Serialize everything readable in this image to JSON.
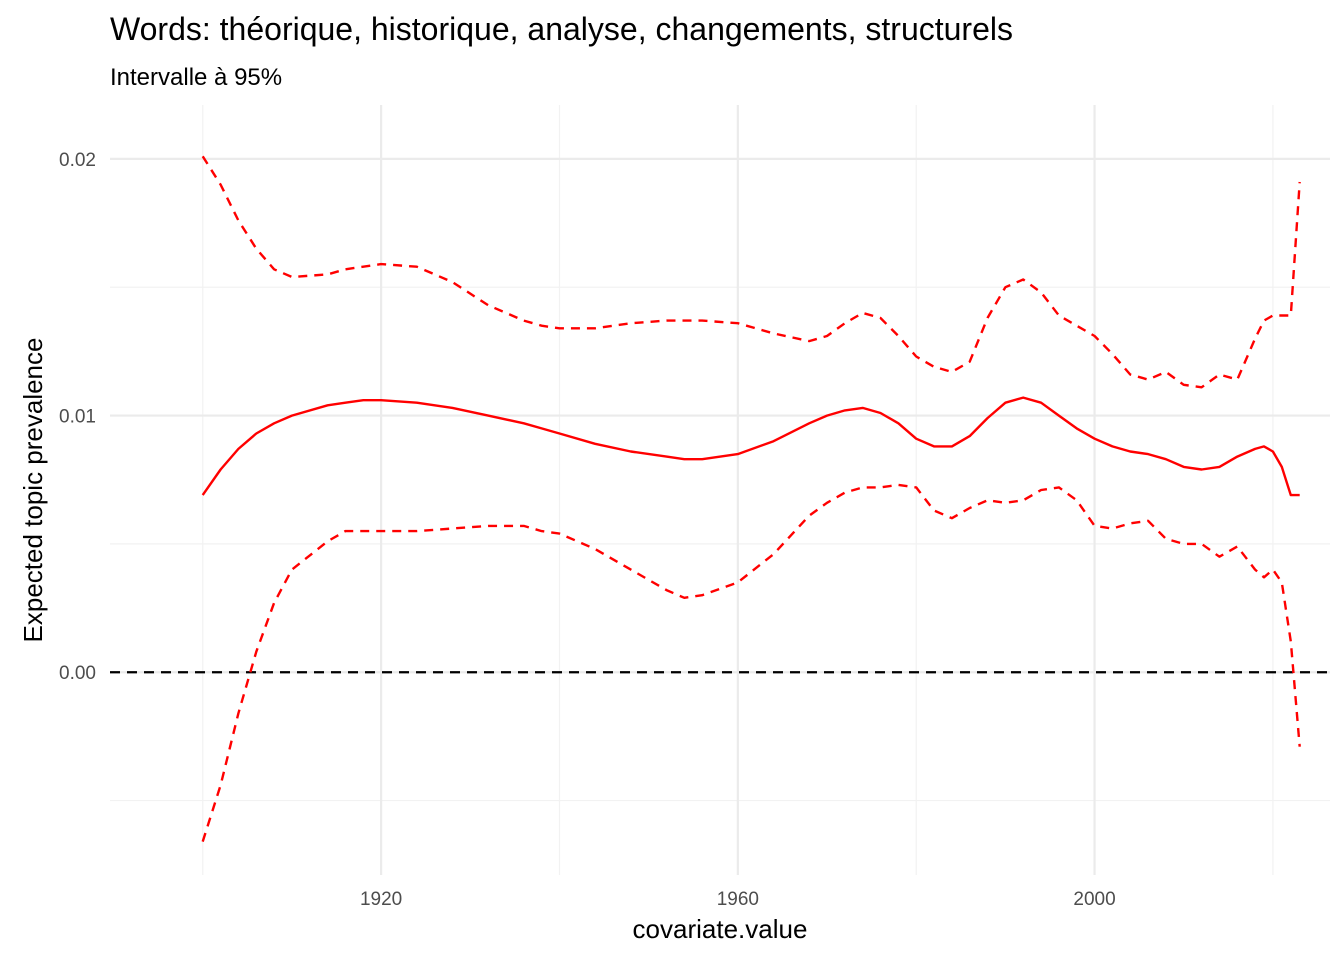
{
  "chart_data": {
    "type": "line",
    "title": "Words: théorique, historique, analyse, changements, structurels",
    "subtitle": "Intervalle à 95%",
    "xlabel": "covariate.value",
    "ylabel": "Expected topic prevalence",
    "xlim": [
      1889.6,
      2026.4
    ],
    "ylim": [
      -0.0079,
      0.0221
    ],
    "x_ticks": [
      1920,
      1960,
      2000
    ],
    "x_tick_labels": [
      "1920",
      "1960",
      "2000"
    ],
    "y_ticks": [
      0.0,
      0.01,
      0.02
    ],
    "y_tick_labels": [
      "0.00",
      "0.01",
      "0.02"
    ],
    "grid": true,
    "reference_line": {
      "y": 0.0,
      "style": "dashed",
      "color": "#000000"
    },
    "x": [
      1900,
      1902,
      1904,
      1906,
      1908,
      1910,
      1914,
      1916,
      1918,
      1920,
      1924,
      1928,
      1932,
      1936,
      1938,
      1940,
      1944,
      1948,
      1952,
      1954,
      1956,
      1960,
      1964,
      1968,
      1970,
      1972,
      1974,
      1976,
      1978,
      1980,
      1982,
      1984,
      1986,
      1988,
      1990,
      1992,
      1994,
      1996,
      1998,
      2000,
      2002,
      2004,
      2006,
      2008,
      2010,
      2012,
      2014,
      2016,
      2018,
      2019,
      2020,
      2021,
      2022,
      2023
    ],
    "series": [
      {
        "role": "estimate",
        "color": "#ff0000",
        "dash": "solid",
        "values": [
          0.0069,
          0.0079,
          0.0087,
          0.0093,
          0.0097,
          0.01,
          0.0104,
          0.0105,
          0.0106,
          0.0106,
          0.0105,
          0.0103,
          0.01,
          0.0097,
          0.0095,
          0.0093,
          0.0089,
          0.0086,
          0.0084,
          0.0083,
          0.0083,
          0.0085,
          0.009,
          0.0097,
          0.01,
          0.0102,
          0.0103,
          0.0101,
          0.0097,
          0.0091,
          0.0088,
          0.0088,
          0.0092,
          0.0099,
          0.0105,
          0.0107,
          0.0105,
          0.01,
          0.0095,
          0.0091,
          0.0088,
          0.0086,
          0.0085,
          0.0083,
          0.008,
          0.0079,
          0.008,
          0.0084,
          0.0087,
          0.0088,
          0.0086,
          0.008,
          0.0069,
          0.0069
        ]
      },
      {
        "role": "upper-95",
        "color": "#ff0000",
        "dash": "dashed",
        "values": [
          0.0201,
          0.019,
          0.0176,
          0.0165,
          0.0157,
          0.0154,
          0.0155,
          0.0157,
          0.0158,
          0.0159,
          0.0158,
          0.0152,
          0.0143,
          0.0137,
          0.0135,
          0.0134,
          0.0134,
          0.0136,
          0.0137,
          0.0137,
          0.0137,
          0.0136,
          0.0132,
          0.0129,
          0.0131,
          0.0136,
          0.014,
          0.0138,
          0.0131,
          0.0123,
          0.0119,
          0.0117,
          0.0121,
          0.0138,
          0.015,
          0.0153,
          0.0148,
          0.0139,
          0.0135,
          0.0131,
          0.0124,
          0.0116,
          0.0114,
          0.0117,
          0.0112,
          0.0111,
          0.0116,
          0.0114,
          0.013,
          0.0137,
          0.0139,
          0.0139,
          0.0139,
          0.0191
        ]
      },
      {
        "role": "lower-95",
        "color": "#ff0000",
        "dash": "dashed",
        "values": [
          -0.0066,
          -0.0044,
          -0.0016,
          0.0008,
          0.0027,
          0.004,
          0.0051,
          0.0055,
          0.0055,
          0.0055,
          0.0055,
          0.0056,
          0.0057,
          0.0057,
          0.0055,
          0.0054,
          0.0048,
          0.004,
          0.0032,
          0.0029,
          0.003,
          0.0035,
          0.0046,
          0.0061,
          0.0066,
          0.007,
          0.0072,
          0.0072,
          0.0073,
          0.0072,
          0.0063,
          0.006,
          0.0064,
          0.0067,
          0.0066,
          0.0067,
          0.0071,
          0.0072,
          0.0067,
          0.0057,
          0.0056,
          0.0058,
          0.0059,
          0.0052,
          0.005,
          0.005,
          0.0045,
          0.0049,
          0.004,
          0.0037,
          0.004,
          0.0035,
          0.0012,
          -0.0029
        ]
      }
    ]
  }
}
